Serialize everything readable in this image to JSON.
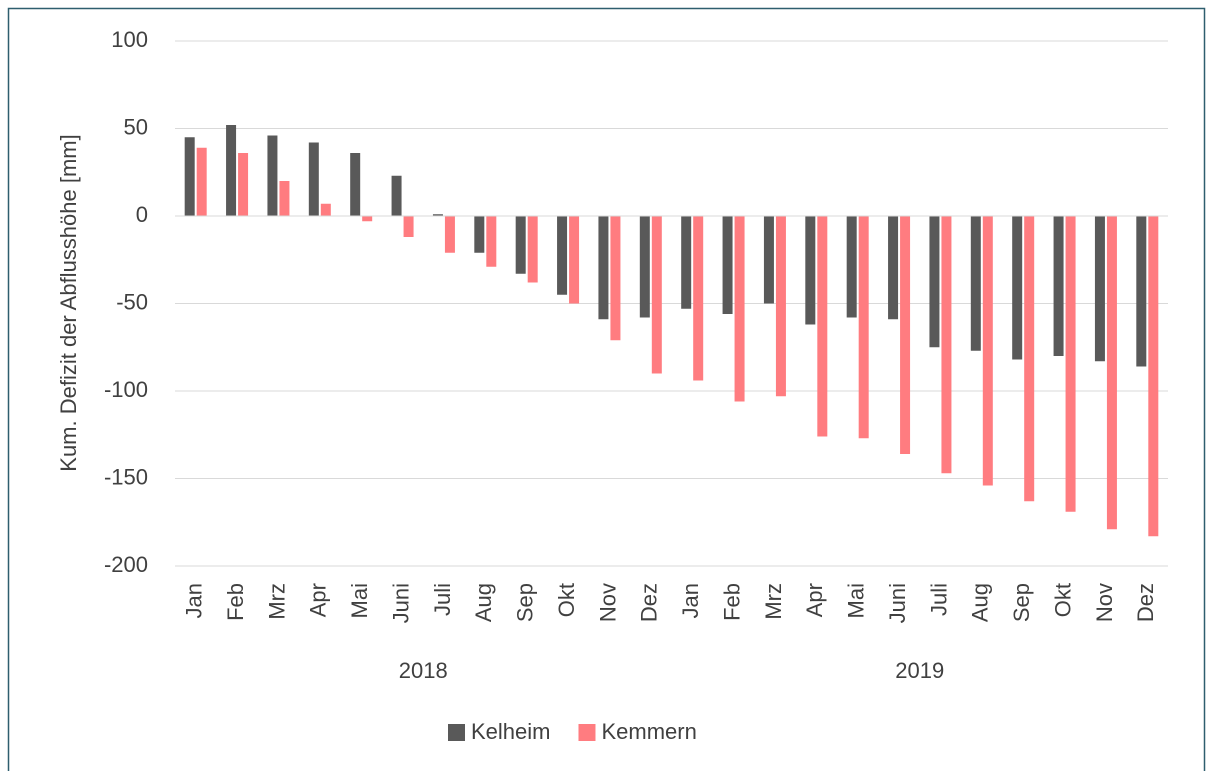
{
  "chart_data": {
    "type": "bar",
    "y_label": "Kum. Defizit der Abflusshöhe [mm]",
    "groups": [
      {
        "name": "2018",
        "categories": [
          "Jan",
          "Feb",
          "Mrz",
          "Apr",
          "Mai",
          "Juni",
          "Juli",
          "Aug",
          "Sep",
          "Okt",
          "Nov",
          "Dez"
        ]
      },
      {
        "name": "2019",
        "categories": [
          "Jan",
          "Feb",
          "Mrz",
          "Apr",
          "Mai",
          "Juni",
          "Juli",
          "Aug",
          "Sep",
          "Okt",
          "Nov",
          "Dez"
        ]
      }
    ],
    "series": [
      {
        "name": "Kelheim",
        "color": "#595959",
        "values": [
          45,
          52,
          46,
          42,
          36,
          23,
          1,
          -21,
          -33,
          -45,
          -59,
          -58,
          -53,
          -56,
          -50,
          -62,
          -58,
          -59,
          -75,
          -77,
          -82,
          -80,
          -83,
          -86
        ]
      },
      {
        "name": "Kemmern",
        "color": "#ff7c80",
        "values": [
          39,
          36,
          20,
          7,
          -3,
          -12,
          -21,
          -29,
          -38,
          -50,
          -71,
          -90,
          -94,
          -106,
          -103,
          -126,
          -127,
          -136,
          -147,
          -154,
          -163,
          -169,
          -179,
          -183
        ]
      }
    ],
    "ylim": [
      -200,
      100
    ],
    "yticks": [
      100,
      50,
      0,
      -50,
      -100,
      -150,
      -200
    ],
    "grid": true,
    "legend": "bottom"
  }
}
